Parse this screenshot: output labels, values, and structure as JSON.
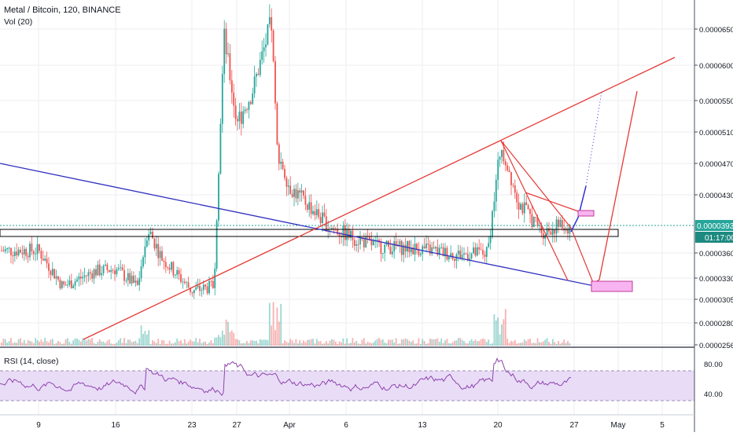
{
  "header": {
    "symbol_title": "Metal / Bitcoin, 120, BINANCE",
    "volume_label": "Vol (20)",
    "rsi_label": "RSI (14, close)"
  },
  "price_scale": {
    "ticks": [
      "0.00006500",
      "0.00006000",
      "0.00005500",
      "0.00005100",
      "0.00004700",
      "0.00004300",
      "0.00003600",
      "0.00003300",
      "0.00003050",
      "0.00002800",
      "0.00002560"
    ],
    "last_price": "0.00003930",
    "countdown": "01:17:00",
    "accent_color": "#26a69a"
  },
  "rsi_scale": {
    "ticks": [
      "80.00",
      "40.00"
    ]
  },
  "time_axis": {
    "labels": [
      "9",
      "16",
      "23",
      "27",
      "Apr",
      "6",
      "13",
      "20",
      "27",
      "May",
      "5"
    ]
  },
  "colors": {
    "up": "#26a69a",
    "down": "#ef5350",
    "trendline_red": "#e53935",
    "trendline_blue": "#3030c0",
    "rsi_line": "#8e44ad",
    "rsi_band": "#e9dcf7",
    "target_box": "#f8b4f0",
    "grid": "#e6e8ee"
  },
  "chart_data": {
    "type": "candlestick",
    "title": "Metal / Bitcoin, 120, BINANCE",
    "x_labels": [
      "9",
      "16",
      "23",
      "27",
      "Apr",
      "6",
      "13",
      "20",
      "27",
      "May",
      "5"
    ],
    "y_ticks": [
      6.5e-05,
      6e-05,
      5.5e-05,
      5.1e-05,
      4.7e-05,
      4.3e-05,
      3.6e-05,
      3.3e-05,
      3.05e-05,
      2.8e-05,
      2.56e-05
    ],
    "price_path": [
      [
        "9",
        3.63e-05
      ],
      [
        "11",
        3.2e-05
      ],
      [
        "13",
        3.38e-05
      ],
      [
        "16",
        3.41e-05
      ],
      [
        "18",
        3.2e-05
      ],
      [
        "19",
        3.9e-05
      ],
      [
        "20",
        3.55e-05
      ],
      [
        "23",
        3.15e-05
      ],
      [
        "25",
        3.2e-05
      ],
      [
        "26",
        6.4e-05
      ],
      [
        "27",
        5.2e-05
      ],
      [
        "28",
        5.6e-05
      ],
      [
        "29",
        6.6e-05
      ],
      [
        "30",
        4.9e-05
      ],
      [
        "Apr 1",
        4.4e-05
      ],
      [
        "Apr 3",
        4.2e-05
      ],
      [
        "Apr 5",
        3.92e-05
      ],
      [
        "Apr 7",
        3.78e-05
      ],
      [
        "Apr 9",
        3.68e-05
      ],
      [
        "Apr 13",
        3.65e-05
      ],
      [
        "Apr 16",
        3.58e-05
      ],
      [
        "Apr 19",
        3.6e-05
      ],
      [
        "Apr 20",
        4.95e-05
      ],
      [
        "Apr 22",
        4.2e-05
      ],
      [
        "Apr 24",
        3.85e-05
      ],
      [
        "Apr 25",
        3.93e-05
      ],
      [
        "Apr 26",
        3.9e-05
      ]
    ],
    "last_value": 3.93e-05,
    "rsi_series": {
      "name": "RSI (14, close)",
      "ticks": [
        80,
        40
      ]
    }
  }
}
